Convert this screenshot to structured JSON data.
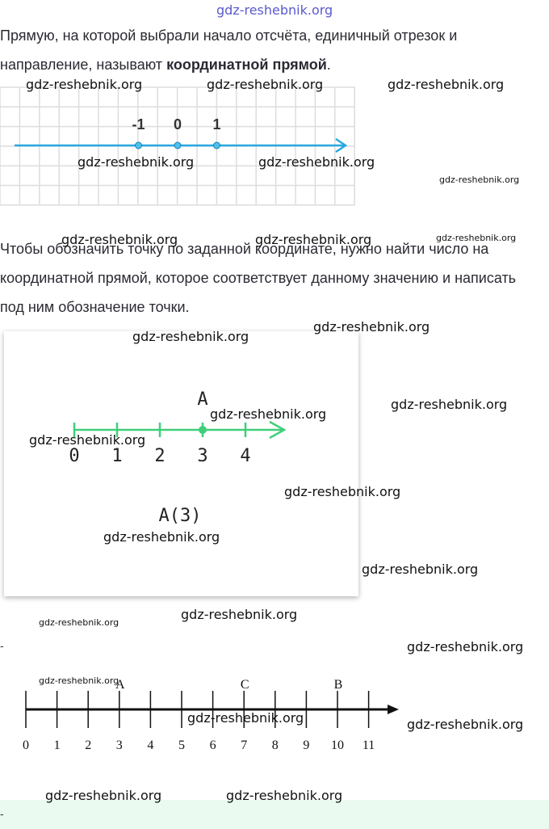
{
  "paragraph_1": {
    "text": "Прямую, на которой выбрали начало отсчёта, единичный отрезок и направление, называют ",
    "bold": "координатной прямой",
    "end": "."
  },
  "figure_1": {
    "ticks": [
      -1,
      0,
      1
    ]
  },
  "paragraph_2": {
    "text": "Чтобы обозначить точку по заданной координате, нужно найти число на координатной прямой, которое соответствует данному значению и написать под ним обозначение точки."
  },
  "figure_2": {
    "ticks": [
      0,
      1,
      2,
      3,
      4
    ],
    "point": {
      "label": "A",
      "value": 3
    },
    "caption": "A(3)"
  },
  "figure_3": {
    "ticks": [
      0,
      1,
      2,
      3,
      4,
      5,
      6,
      7,
      8,
      9,
      10,
      11
    ],
    "points": [
      {
        "label": "A",
        "value": 3
      },
      {
        "label": "C",
        "value": 7
      },
      {
        "label": "B",
        "value": 10
      }
    ]
  },
  "dashes": [
    "-",
    "-"
  ],
  "watermarks": [
    "gdz-reshebnik.org",
    "gdz-reshebnik.org",
    "gdz-reshebnik.org",
    "gdz-reshebnik.org",
    "gdz-reshebnik.org",
    "gdz-reshebnik.org",
    "gdz-reshebnik.org",
    "gdz-reshebnik.org",
    "gdz-reshebnik.org",
    "gdz-reshebnik.org",
    "gdz-reshebnik.org",
    "gdz-reshebnik.org",
    "gdz-reshebnik.org",
    "gdz-reshebnik.org",
    "gdz-reshebnik.org",
    "gdz-reshebnik.org",
    "gdz-reshebnik.org",
    "gdz-reshebnik.org",
    "gdz-reshebnik.org",
    "gdz-reshebnik.org",
    "gdz-reshebnik.org",
    "gdz-reshebnik.org",
    "gdz-reshebnik.org",
    "gdz-reshebnik.org",
    "gdz-reshebnik.org",
    "gdz-reshebnik.org"
  ]
}
